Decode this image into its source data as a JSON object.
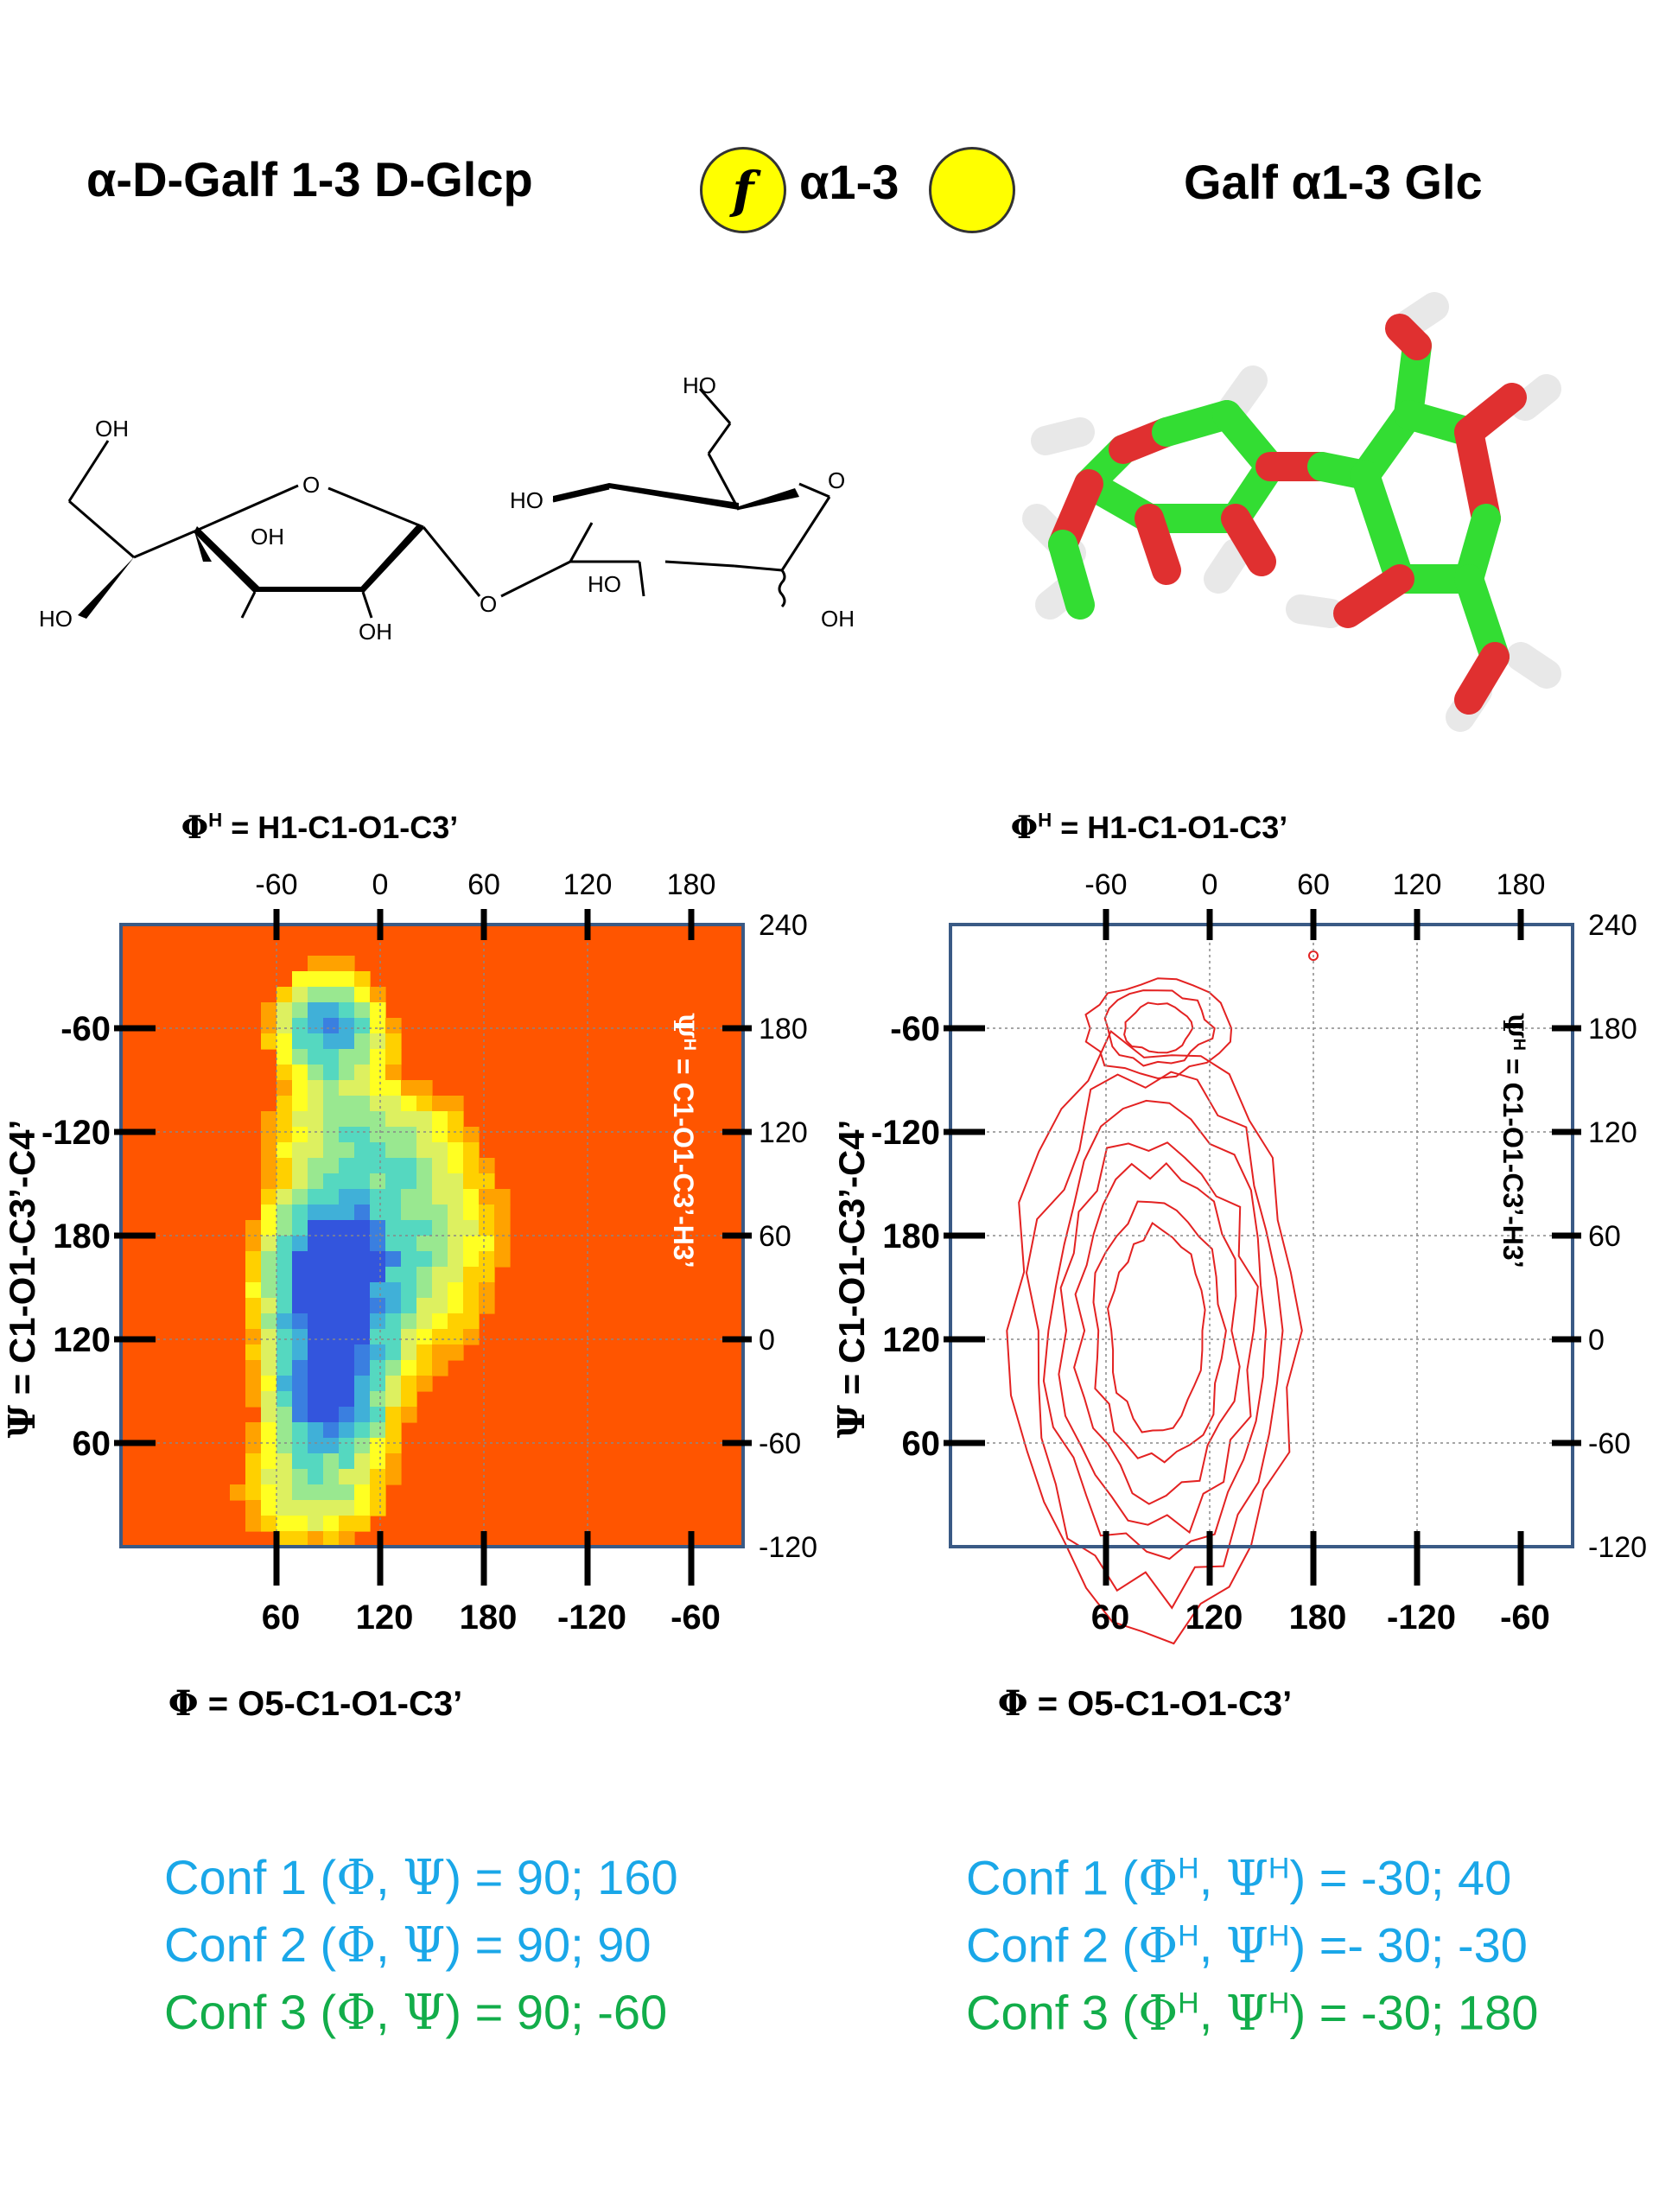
{
  "header": {
    "title_left": "α-D-Galf 1-3 D-Glcp",
    "badge_letter": "f",
    "linkage": "α1-3",
    "title_right": "Galf α1-3 Glc"
  },
  "structure_labels": {
    "oh_c6": "OH",
    "ho_c5": "HO",
    "oh_c3": "OH",
    "oh_c2": "OH",
    "ring_o_left": "O",
    "glyco_o": "O",
    "ho_c6p": "HO",
    "ring_o_right": "O",
    "ho_c4p": "HO",
    "ho_c2p": "HO",
    "oh_anomeric": "OH"
  },
  "chart_data": [
    {
      "type": "heatmap",
      "title_top": "ΦH = H1-C1-O1-C3’",
      "top_ticks": [
        "-60",
        "0",
        "60",
        "120",
        "180"
      ],
      "left_ticks": [
        "-60",
        "-120",
        "180",
        "120",
        "60"
      ],
      "right_ticks": [
        "240",
        "180",
        "120",
        "60",
        "0",
        "-60",
        "-120"
      ],
      "bottom_ticks": [
        "60",
        "120",
        "180",
        "-120",
        "-60"
      ],
      "xlabel": "Φ = O5-C1-O1-C3’",
      "ylabel": "Ψ = C1-O1-C3’-C4’",
      "ylabel_right": "ΨH = C1-O1-C3’-H3’",
      "phiH_range": [
        -150,
        210
      ],
      "psiH_range": [
        -120,
        240
      ],
      "grid": true,
      "background": "#ff5500",
      "minima": [
        {
          "phiH": -30,
          "psiH": 40
        },
        {
          "phiH": -30,
          "psiH": -30
        },
        {
          "phiH": -30,
          "psiH": 180
        }
      ]
    },
    {
      "type": "contour",
      "title_top": "ΦH = H1-C1-O1-C3’",
      "top_ticks": [
        "-60",
        "0",
        "60",
        "120",
        "180"
      ],
      "left_ticks": [
        "-60",
        "-120",
        "180",
        "120",
        "60"
      ],
      "right_ticks": [
        "240",
        "180",
        "120",
        "60",
        "0",
        "-60",
        "-120"
      ],
      "bottom_ticks": [
        "60",
        "120",
        "180",
        "-120",
        "-60"
      ],
      "xlabel": "Φ = O5-C1-O1-C3’",
      "ylabel": "Ψ = C1-O1-C3’-C4’",
      "ylabel_right": "ΨH = C1-O1-C3’-H3’",
      "phiH_range": [
        -150,
        210
      ],
      "psiH_range": [
        -120,
        240
      ],
      "grid": true,
      "line_color": "#e32222"
    }
  ],
  "conformations": {
    "left": [
      {
        "prefix": "Conf 1 (",
        "sym1": "Φ",
        "sep": ", ",
        "sym2": "Ψ",
        "suffix": ") = 90; 160"
      },
      {
        "prefix": "Conf 2 (",
        "sym1": "Φ",
        "sep": ", ",
        "sym2": "Ψ",
        "suffix": ") =  90;   90"
      },
      {
        "prefix": "Conf 3 (",
        "sym1": "Φ",
        "sep": ", ",
        "sym2": "Ψ",
        "suffix": ") =  90;  -60"
      }
    ],
    "right": [
      {
        "prefix": "Conf 1 (",
        "sym1": "ΦH",
        "sep": ", ",
        "sym2": "ΨH",
        "suffix": ") = -30; 40"
      },
      {
        "prefix": "Conf 2 (",
        "sym1": "ΦH",
        "sep": ", ",
        "sym2": "ΨH",
        "suffix": ") =- 30; -30"
      },
      {
        "prefix": "Conf 3 (",
        "sym1": "ΦH",
        "sep": ", ",
        "sym2": "ΨH",
        "suffix": ") = -30; 180"
      }
    ]
  },
  "colors": {
    "conf1": "#1aa7e8",
    "conf2": "#1aa7e8",
    "conf3": "#12ad4a",
    "frame": "#3a5a85",
    "carbon": "#33dd33",
    "oxygen": "#e03030",
    "hydrogen": "#e8e8e8"
  }
}
